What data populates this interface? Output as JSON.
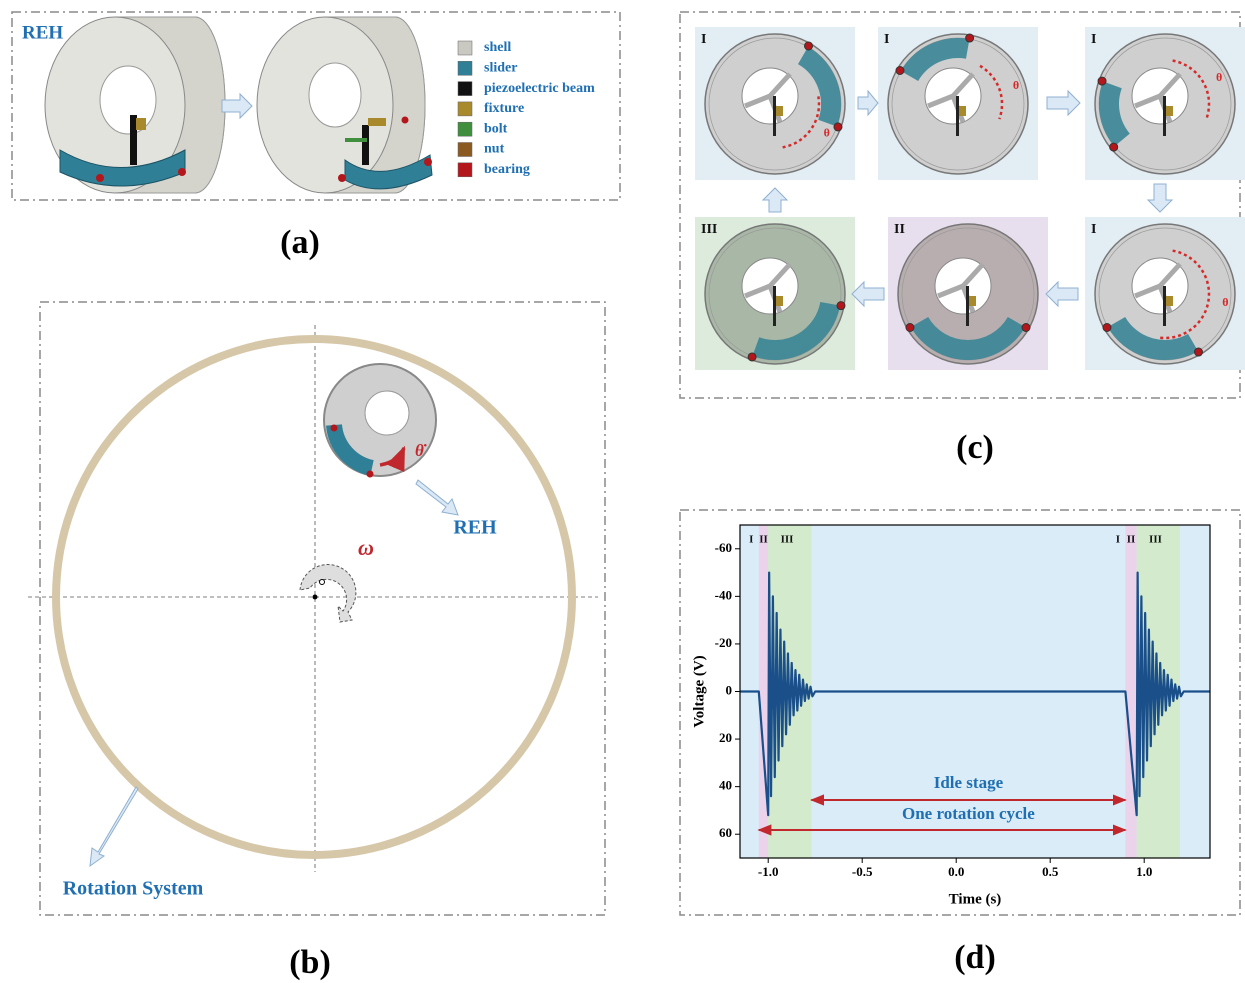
{
  "panel_a": {
    "label": "REH",
    "legend": [
      {
        "name": "shell",
        "color": "#c9c9c2"
      },
      {
        "name": "slider",
        "color": "#2f7f96"
      },
      {
        "name": "piezoelectric beam",
        "color": "#111111"
      },
      {
        "name": "fixture",
        "color": "#a88a2c"
      },
      {
        "name": "bolt",
        "color": "#3f8f3f"
      },
      {
        "name": "nut",
        "color": "#8a5a22"
      },
      {
        "name": "bearing",
        "color": "#b3161b"
      }
    ],
    "caption": "(a)"
  },
  "panel_b": {
    "reh_label": "REH",
    "omega": "ω",
    "theta_dot": "θ̇",
    "rotation_label": "Rotation System",
    "caption": "(b)"
  },
  "panel_c": {
    "tiles": [
      {
        "stage": "I",
        "theta": "θ"
      },
      {
        "stage": "I",
        "theta": "θ"
      },
      {
        "stage": "I",
        "theta": "θ"
      },
      {
        "stage": "I",
        "theta": "θ"
      },
      {
        "stage": "II"
      },
      {
        "stage": "III"
      }
    ],
    "caption": "(c)"
  },
  "panel_d": {
    "caption": "(d)"
  },
  "chart_data": {
    "type": "line",
    "x_label": "Time (s)",
    "y_label": "Voltage (V)",
    "xlim": [
      -1.15,
      1.35
    ],
    "xticks": [
      {
        "value": -1,
        "label": "-1.0"
      },
      -0.5,
      {
        "value": 0,
        "label": "0.0"
      },
      0.5,
      {
        "value": 1,
        "label": "1.0"
      }
    ],
    "ylim": [
      -70,
      70
    ],
    "y_inverted": true,
    "yticks": [
      -60,
      -40,
      -20,
      0,
      20,
      40,
      60
    ],
    "background": "#d9ecf8",
    "bands": [
      {
        "x": [
          -1.05,
          -1.0
        ],
        "color": "#ecd3ec"
      },
      {
        "x": [
          -1.0,
          -0.77
        ],
        "color": "#d3eacc"
      },
      {
        "x": [
          0.9,
          0.96
        ],
        "color": "#ecd3ec"
      },
      {
        "x": [
          0.96,
          1.19
        ],
        "color": "#d3eacc"
      }
    ],
    "stage_labels": [
      {
        "text": "I",
        "x": -1.09
      },
      {
        "text": "II",
        "x": -1.025
      },
      {
        "text": "III",
        "x": -0.9
      },
      {
        "text": "I",
        "x": 0.86
      },
      {
        "text": "II",
        "x": 0.93
      },
      {
        "text": "III",
        "x": 1.06
      }
    ],
    "annotations": [
      {
        "text": "Idle stage"
      },
      {
        "text": "One rotation cycle"
      }
    ],
    "series": [
      {
        "color": "#1a4f8a",
        "x": [
          -1.15,
          -1.05,
          -1.0,
          -0.995,
          -0.985,
          -0.975,
          -0.965,
          -0.955,
          -0.945,
          -0.935,
          -0.925,
          -0.915,
          -0.905,
          -0.895,
          -0.885,
          -0.875,
          -0.865,
          -0.855,
          -0.845,
          -0.835,
          -0.825,
          -0.815,
          -0.805,
          -0.795,
          -0.785,
          -0.775,
          -0.765,
          -0.75,
          0.9,
          0.96,
          0.965,
          0.975,
          0.985,
          0.995,
          1.005,
          1.015,
          1.025,
          1.035,
          1.045,
          1.055,
          1.065,
          1.075,
          1.085,
          1.095,
          1.105,
          1.115,
          1.125,
          1.135,
          1.145,
          1.155,
          1.165,
          1.175,
          1.185,
          1.195,
          1.21,
          1.35
        ],
        "values": [
          0,
          0,
          52,
          -50,
          44,
          -40,
          36,
          -33,
          29,
          -26,
          23,
          -21,
          18,
          -16,
          14,
          -12,
          10,
          -9,
          8,
          -7,
          6,
          -5,
          4,
          -3,
          3,
          -2,
          2,
          0,
          0,
          52,
          -50,
          44,
          -40,
          36,
          -33,
          29,
          -26,
          23,
          -21,
          18,
          -16,
          14,
          -12,
          10,
          -9,
          8,
          -7,
          6,
          -5,
          4,
          -3,
          3,
          -2,
          2,
          0,
          0
        ]
      }
    ]
  }
}
